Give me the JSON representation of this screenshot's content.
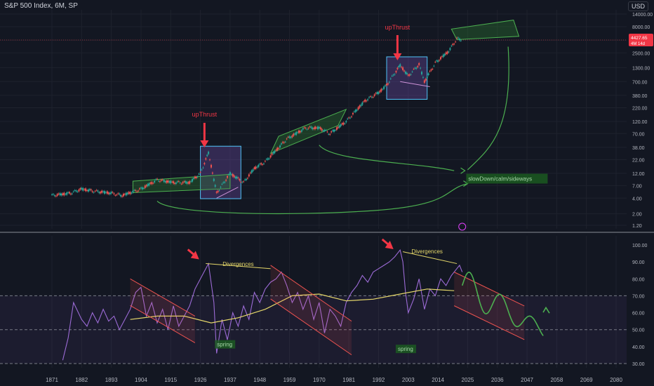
{
  "header": {
    "symbol": "S&P 500 Index, 6M, SP",
    "currency": "USD"
  },
  "price_badge": {
    "value": "4427.65",
    "sub": "4M 14d"
  },
  "chart_data": [
    {
      "type": "line",
      "title": "S&P 500 Index, 6M, SP",
      "yscale": "log",
      "ylim": [
        1.2,
        14000
      ],
      "yticks": [
        "14000.00",
        "8000.00",
        "4400.00",
        "2500.00",
        "1300.00",
        "700.00",
        "380.00",
        "220.00",
        "120.00",
        "70.00",
        "38.00",
        "22.00",
        "12.00",
        "7.00",
        "4.00",
        "2.00",
        "1.20"
      ],
      "annotations": [
        "upThrust",
        "upThrust",
        "slowDown/calm/sideways"
      ],
      "series": [
        {
          "x": [
            1871,
            1878,
            1882,
            1886,
            1893,
            1897,
            1904,
            1910,
            1916,
            1922,
            1926,
            1929,
            1932,
            1937,
            1942,
            1946,
            1950,
            1958,
            1965,
            1970,
            1974,
            1980,
            1987,
            1992,
            1995,
            2000,
            2003,
            2007,
            2009,
            2013,
            2018,
            2021,
            2023
          ],
          "values": [
            4.5,
            5,
            6,
            5.5,
            5,
            4.5,
            6,
            9,
            8,
            8,
            12,
            30,
            5,
            12,
            8,
            15,
            20,
            55,
            90,
            90,
            70,
            120,
            300,
            430,
            600,
            1450,
            900,
            1500,
            700,
            1600,
            2700,
            4700,
            4428
          ]
        }
      ],
      "grid": true,
      "legend": "none"
    },
    {
      "type": "line",
      "title": "",
      "ylim": [
        28,
        102
      ],
      "yticks": [
        "100.00",
        "90.00",
        "80.00",
        "70.00",
        "60.00",
        "50.00",
        "40.00",
        "30.00"
      ],
      "annotations": [
        "Divergences",
        "Divergences",
        "spring",
        "spring"
      ],
      "series": [
        {
          "x": [
            1875,
            1877,
            1879,
            1882,
            1884,
            1886,
            1888,
            1890,
            1892,
            1894,
            1896,
            1898,
            1900,
            1902,
            1904,
            1906,
            1908,
            1910,
            1912,
            1914,
            1916,
            1918,
            1920,
            1922,
            1924,
            1926,
            1928,
            1929,
            1931,
            1932,
            1934,
            1936,
            1938,
            1940,
            1942,
            1944,
            1946,
            1948,
            1950,
            1952,
            1954,
            1956,
            1958,
            1960,
            1962,
            1964,
            1966,
            1968,
            1970,
            1972,
            1974,
            1976,
            1978,
            1980,
            1982,
            1984,
            1986,
            1988,
            1990,
            1992,
            1994,
            1996,
            1998,
            2000,
            2001,
            2002,
            2003,
            2005,
            2007,
            2009,
            2011,
            2013,
            2015,
            2017,
            2019,
            2021,
            2022,
            2023
          ],
          "values": [
            32,
            45,
            66,
            56,
            52,
            60,
            54,
            62,
            55,
            58,
            50,
            56,
            62,
            72,
            75,
            58,
            66,
            54,
            62,
            50,
            64,
            52,
            58,
            64,
            74,
            80,
            86,
            89,
            66,
            36,
            56,
            44,
            60,
            52,
            64,
            56,
            72,
            66,
            74,
            78,
            80,
            84,
            76,
            66,
            72,
            62,
            70,
            56,
            66,
            48,
            62,
            58,
            52,
            66,
            72,
            76,
            82,
            78,
            84,
            86,
            88,
            90,
            93,
            97,
            90,
            72,
            60,
            68,
            80,
            62,
            74,
            70,
            80,
            76,
            82,
            86,
            88,
            84
          ]
        },
        {
          "x": [
            1900,
            1910,
            1920,
            1930,
            1940,
            1950,
            1960,
            1970,
            1980,
            1990,
            2000,
            2010,
            2020
          ],
          "values": [
            56,
            58,
            58,
            54,
            57,
            62,
            70,
            71,
            67,
            68,
            71,
            74,
            73
          ]
        }
      ],
      "grid": true,
      "legend": "none"
    }
  ],
  "xaxis": {
    "ticks": [
      "1871",
      "1882",
      "1893",
      "1904",
      "1915",
      "1926",
      "1937",
      "1948",
      "1959",
      "1970",
      "1981",
      "1992",
      "2003",
      "2014",
      "2025",
      "2036",
      "2047",
      "2058",
      "2069",
      "2080"
    ]
  },
  "colors": {
    "bg": "#131722",
    "price": "#26a69a",
    "down": "#ef5350",
    "rsi": "#9c6bd6",
    "sma": "#e6d86a",
    "accent_red": "#f23645",
    "green": "#4caf50",
    "orange": "#ff9800"
  }
}
